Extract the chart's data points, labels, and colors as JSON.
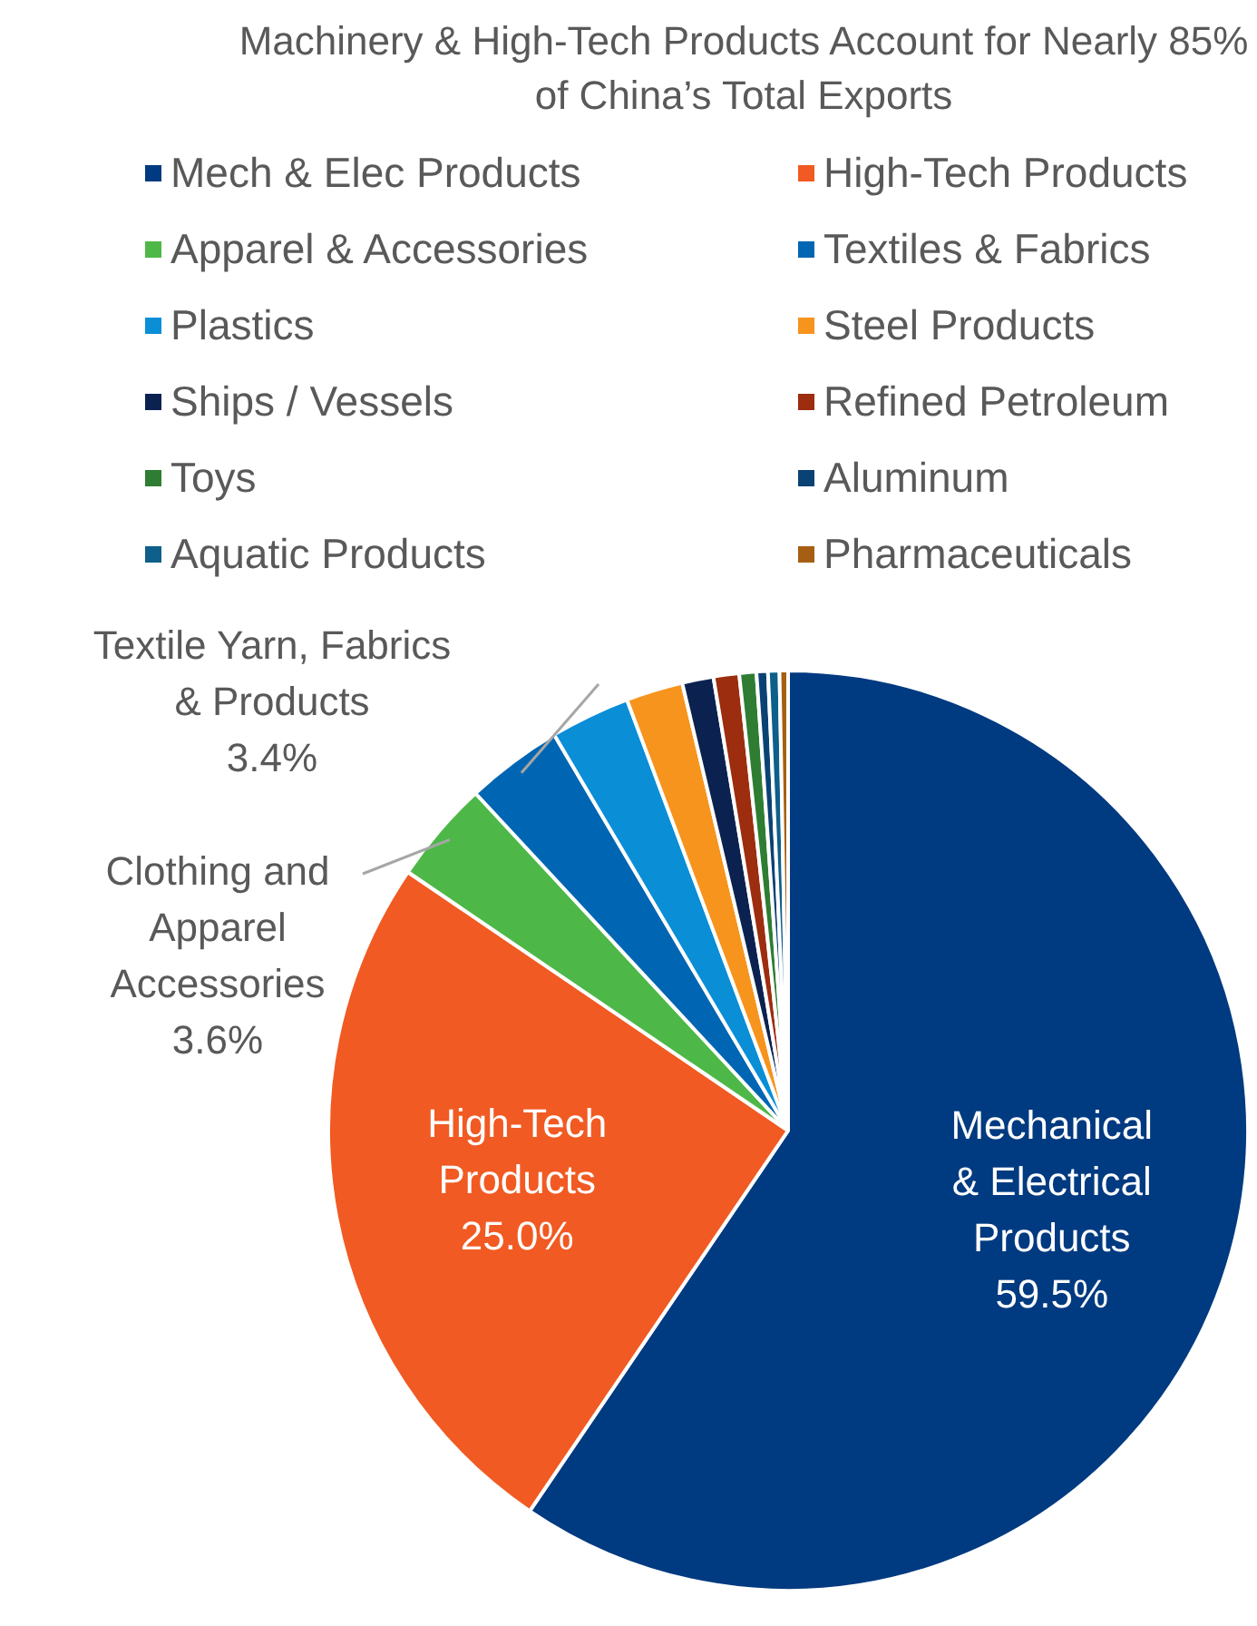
{
  "chart_data": {
    "type": "pie",
    "title": "Machinery & High-Tech Products Account for Nearly 85% of China’s Total Exports",
    "categories": [
      "Mech & Elec Products",
      "High-Tech Products",
      "Apparel & Accessories",
      "Textiles & Fabrics",
      "Plastics",
      "Steel Products",
      "Ships / Vessels",
      "Refined Petroleum",
      "Toys",
      "Aluminum",
      "Aquatic Products",
      "Pharmaceuticals"
    ],
    "values": [
      59.5,
      25.0,
      3.6,
      3.4,
      2.8,
      2.0,
      1.1,
      0.9,
      0.6,
      0.4,
      0.4,
      0.3
    ],
    "colors": [
      "#003a80",
      "#f15a22",
      "#4db848",
      "#0066b3",
      "#0a8ed6",
      "#f7941d",
      "#0b2250",
      "#9c2d0f",
      "#2e7d32",
      "#0b4274",
      "#0e5f8a",
      "#a65f12"
    ],
    "value_labels": [
      "Mechanical\n& Electrical\nProducts\n59.5%",
      "High-Tech\nProducts\n25.0%",
      "Clothing and\nApparel\nAccessories\n3.6%",
      "Textile Yarn, Fabrics\n& Products\n3.4%",
      null,
      null,
      null,
      null,
      null,
      null,
      null,
      null
    ],
    "legend": "top"
  }
}
